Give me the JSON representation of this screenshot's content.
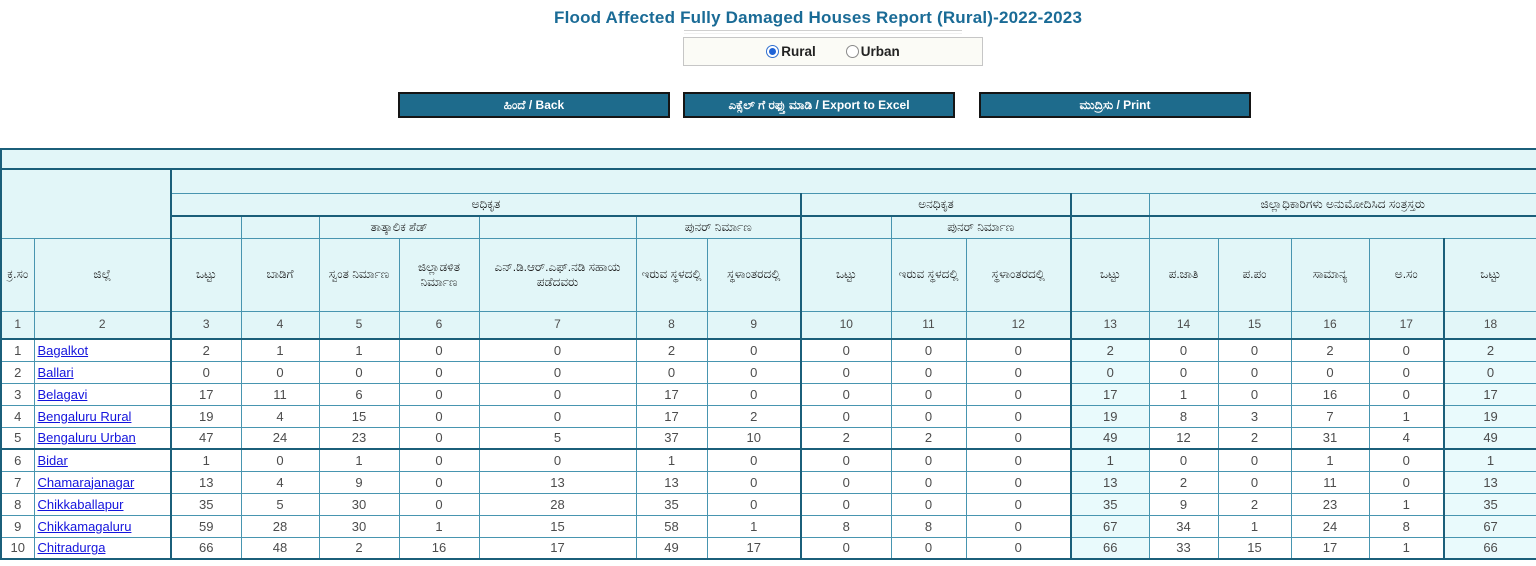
{
  "title": "Flood Affected Fully Damaged Houses Report (Rural)-2022-2023",
  "radio": {
    "options": [
      {
        "label": "Rural",
        "selected": true
      },
      {
        "label": "Urban",
        "selected": false
      }
    ]
  },
  "buttons": {
    "back": "ಹಿಂದೆ / Back",
    "export": "ಎಕ್ಸೆಲ್ ಗೆ ರಫ್ತು ಮಾಡಿ / Export to Excel",
    "print": "ಮುದ್ರಿಸು / Print"
  },
  "colors": {
    "title": "#1a6b96",
    "button_bg": "#1e6b8c",
    "header_bg": "#e2f6f8",
    "highlight_col_bg": "#e9fafc",
    "border_thin": "#4895b0",
    "border_thick": "#1b5f7a",
    "link": "#1414dd"
  },
  "table": {
    "groups": {
      "authorized": "ಅಧಿಕೃತ",
      "unauthorized": "ಅನಧಿಕೃತ",
      "dc_approved": "ಜಿಲ್ಲಾಧಿಕಾರಿಗಳು ಅನುಮೋದಿಸಿದ ಸಂತ್ರಸ್ತರು"
    },
    "subgroups": {
      "temp_shed": "ತಾತ್ಕಾಲಿಕ ಶೆಡ್",
      "reconstruction_auth": "ಪುನರ್ ನಿರ್ಮಾಣ",
      "reconstruction_unauth": "ಪುನರ್ ನಿರ್ಮಾಣ"
    },
    "columns": [
      "ಕ್ರ.ಸಂ",
      "ಜಿಲ್ಲೆ",
      "ಒಟ್ಟು",
      "ಬಾಡಿಗೆ",
      "ಸ್ವಂತ ನಿರ್ಮಾಣ",
      "ಜಿಲ್ಲಾಡಳಿತ ನಿರ್ಮಾಣ",
      "ಎನ್.ಡಿ.ಆರ್.ಎಫ್.ನಡಿ ಸಹಾಯ ಪಡೆದವರು",
      "ಇರುವ ಸ್ಥಳದಲ್ಲಿ",
      "ಸ್ಥಳಾಂತರದಲ್ಲಿ",
      "ಒಟ್ಟು",
      "ಇರುವ ಸ್ಥಳದಲ್ಲಿ",
      "ಸ್ಥಳಾಂತರದಲ್ಲಿ",
      "ಒಟ್ಟು",
      "ಪ.ಜಾತಿ",
      "ಪ.ಪಂ",
      "ಸಾಮಾನ್ಯ",
      "ಅ.ಸಂ",
      "ಒಟ್ಟು"
    ],
    "column_numbers": [
      "1",
      "2",
      "3",
      "4",
      "5",
      "6",
      "7",
      "8",
      "9",
      "10",
      "11",
      "12",
      "13",
      "14",
      "15",
      "16",
      "17",
      "18"
    ],
    "rows": [
      {
        "sl": "1",
        "district": "Bagalkot",
        "values": [
          2,
          1,
          1,
          0,
          0,
          2,
          0,
          0,
          0,
          0,
          2,
          0,
          0,
          2,
          0,
          2
        ]
      },
      {
        "sl": "2",
        "district": "Ballari",
        "values": [
          0,
          0,
          0,
          0,
          0,
          0,
          0,
          0,
          0,
          0,
          0,
          0,
          0,
          0,
          0,
          0
        ]
      },
      {
        "sl": "3",
        "district": "Belagavi",
        "values": [
          17,
          11,
          6,
          0,
          0,
          17,
          0,
          0,
          0,
          0,
          17,
          1,
          0,
          16,
          0,
          17
        ]
      },
      {
        "sl": "4",
        "district": "Bengaluru Rural",
        "values": [
          19,
          4,
          15,
          0,
          0,
          17,
          2,
          0,
          0,
          0,
          19,
          8,
          3,
          7,
          1,
          19
        ]
      },
      {
        "sl": "5",
        "district": "Bengaluru Urban",
        "values": [
          47,
          24,
          23,
          0,
          5,
          37,
          10,
          2,
          2,
          0,
          49,
          12,
          2,
          31,
          4,
          49
        ]
      },
      {
        "sl": "6",
        "district": "Bidar",
        "values": [
          1,
          0,
          1,
          0,
          0,
          1,
          0,
          0,
          0,
          0,
          1,
          0,
          0,
          1,
          0,
          1
        ]
      },
      {
        "sl": "7",
        "district": "Chamarajanagar",
        "values": [
          13,
          4,
          9,
          0,
          13,
          13,
          0,
          0,
          0,
          0,
          13,
          2,
          0,
          11,
          0,
          13
        ]
      },
      {
        "sl": "8",
        "district": "Chikkaballapur",
        "values": [
          35,
          5,
          30,
          0,
          28,
          35,
          0,
          0,
          0,
          0,
          35,
          9,
          2,
          23,
          1,
          35
        ]
      },
      {
        "sl": "9",
        "district": "Chikkamagaluru",
        "values": [
          59,
          28,
          30,
          1,
          15,
          58,
          1,
          8,
          8,
          0,
          67,
          34,
          1,
          24,
          8,
          67
        ]
      },
      {
        "sl": "10",
        "district": "Chitradurga",
        "values": [
          66,
          48,
          2,
          16,
          17,
          49,
          17,
          0,
          0,
          0,
          66,
          33,
          15,
          17,
          1,
          66
        ]
      }
    ]
  }
}
